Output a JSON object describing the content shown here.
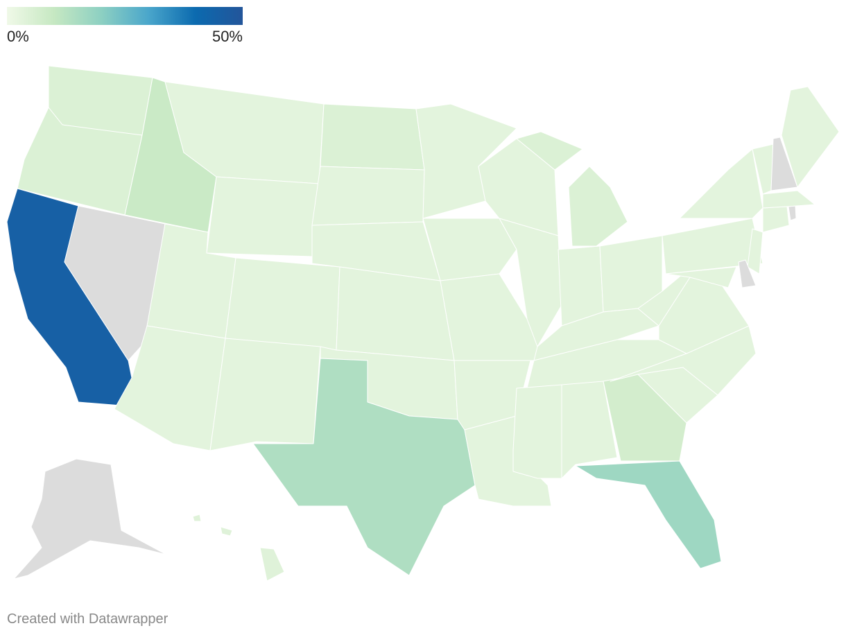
{
  "map": {
    "legend": {
      "colors": [
        "#f0f9e8",
        "#c6e8c2",
        "#8dd0c2",
        "#4aa6cb",
        "#0b6aaf",
        "#23559a"
      ],
      "ticks": [
        {
          "value": 0,
          "label": "0%"
        },
        {
          "value": 50,
          "label": "50%"
        }
      ]
    },
    "no_data_color": "#dcdcdc",
    "values": [
      5,
      5,
      45,
      null,
      9,
      3,
      3,
      3,
      3,
      3,
      3,
      5,
      3,
      3,
      3,
      3,
      14,
      3,
      3,
      3,
      3,
      3,
      3,
      3,
      5,
      3,
      3,
      3,
      3,
      3,
      3,
      7,
      17,
      3,
      3,
      3,
      3,
      3,
      3,
      3,
      3,
      null,
      3,
      null,
      3,
      3,
      null,
      3,
      null,
      4
    ]
  },
  "footer": {
    "credit": "Created with Datawrapper"
  }
}
